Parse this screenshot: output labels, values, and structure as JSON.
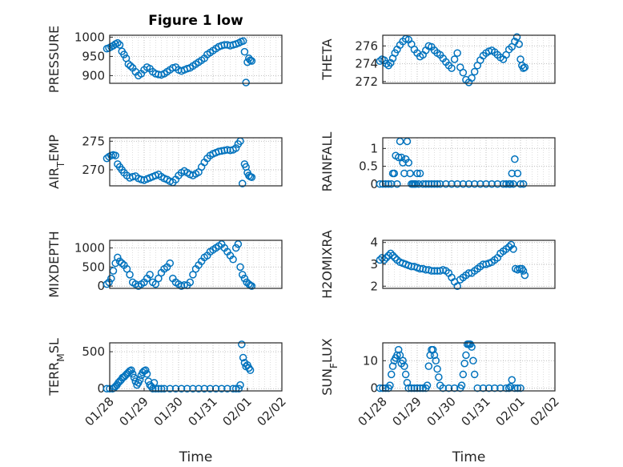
{
  "figure": {
    "title": "Figure 1 low",
    "marker_color": "#0072BD"
  },
  "chart_data": [
    {
      "type": "scatter",
      "marker": "open-circle",
      "grid": true,
      "title": "Figure 1 low",
      "ylabel": "PRESSURE",
      "xlabel": "",
      "xlim": [
        "01/28",
        "02/02"
      ],
      "ylim": [
        880,
        1005
      ],
      "yticks": [
        900,
        950,
        1000
      ],
      "x": [
        "01/27 22:00",
        "01/27 23:30",
        "01/28 01:00",
        "01/28 02:30",
        "01/28 04:00",
        "01/28 05:30",
        "01/28 07:00",
        "01/28 08:30",
        "01/28 10:00",
        "01/28 11:30",
        "01/28 13:00",
        "01/28 14:30",
        "01/28 16:00",
        "01/28 18:00",
        "01/28 20:00",
        "01/28 22:00",
        "01/29 00:00",
        "01/29 02:00",
        "01/29 04:00",
        "01/29 06:00",
        "01/29 08:00",
        "01/29 10:00",
        "01/29 12:00",
        "01/29 14:00",
        "01/29 16:00",
        "01/29 18:00",
        "01/29 20:00",
        "01/29 22:00",
        "01/30 00:00",
        "01/30 02:00",
        "01/30 04:00",
        "01/30 06:00",
        "01/30 08:00",
        "01/30 10:00",
        "01/30 12:00",
        "01/30 14:00",
        "01/30 16:00",
        "01/30 18:00",
        "01/30 20:00",
        "01/30 22:00",
        "01/31 00:00",
        "01/31 02:00",
        "01/31 04:00",
        "01/31 06:00",
        "01/31 08:00",
        "01/31 10:00",
        "01/31 12:00",
        "01/31 14:00",
        "01/31 16:00",
        "01/31 18:00",
        "01/31 19:30",
        "01/31 21:00",
        "01/31 22:00",
        "01/31 23:00",
        "02/01 00:00",
        "02/01 01:00",
        "02/01 02:00",
        "02/01 03:00"
      ],
      "y": [
        970,
        972,
        975,
        978,
        982,
        985,
        980,
        963,
        955,
        945,
        930,
        925,
        920,
        910,
        900,
        905,
        915,
        922,
        918,
        910,
        905,
        903,
        902,
        905,
        910,
        915,
        920,
        922,
        915,
        912,
        915,
        918,
        920,
        925,
        930,
        935,
        940,
        945,
        955,
        960,
        965,
        970,
        975,
        978,
        980,
        980,
        978,
        980,
        982,
        985,
        988,
        990,
        962,
        882,
        935,
        945,
        940,
        938
      ]
    },
    {
      "type": "scatter",
      "marker": "open-circle",
      "grid": true,
      "ylabel": "THETA",
      "xlabel": "",
      "xlim": [
        "01/28",
        "02/02"
      ],
      "ylim": [
        271.8,
        277.2
      ],
      "yticks": [
        272,
        274,
        276
      ],
      "x": [
        "01/27 22:00",
        "01/27 23:30",
        "01/28 01:00",
        "01/28 02:30",
        "01/28 04:00",
        "01/28 05:30",
        "01/28 07:00",
        "01/28 08:30",
        "01/28 10:00",
        "01/28 12:00",
        "01/28 14:00",
        "01/28 16:00",
        "01/28 18:00",
        "01/28 20:00",
        "01/28 22:00",
        "01/29 00:00",
        "01/29 02:00",
        "01/29 04:00",
        "01/29 06:00",
        "01/29 08:00",
        "01/29 10:00",
        "01/29 12:00",
        "01/29 14:00",
        "01/29 16:00",
        "01/29 18:00",
        "01/29 20:00",
        "01/29 22:00",
        "01/30 00:00",
        "01/30 02:00",
        "01/30 04:00",
        "01/30 06:00",
        "01/30 08:00",
        "01/30 10:00",
        "01/30 12:00",
        "01/30 14:00",
        "01/30 16:00",
        "01/30 18:00",
        "01/30 20:00",
        "01/30 22:00",
        "01/31 00:00",
        "01/31 02:00",
        "01/31 04:00",
        "01/31 06:00",
        "01/31 08:00",
        "01/31 10:00",
        "01/31 12:00",
        "01/31 14:00",
        "01/31 16:00",
        "01/31 18:00",
        "01/31 20:00",
        "01/31 21:30",
        "01/31 23:00",
        "02/01 00:00",
        "02/01 01:00",
        "02/01 02:00",
        "02/01 03:00"
      ],
      "y": [
        274.3,
        274.5,
        274.4,
        274.0,
        273.8,
        274.1,
        274.6,
        275.2,
        275.6,
        276.1,
        276.5,
        276.8,
        276.7,
        276.2,
        275.6,
        275.2,
        274.8,
        275.0,
        275.5,
        276.0,
        275.9,
        275.5,
        275.2,
        275.0,
        274.6,
        274.2,
        273.8,
        273.5,
        274.5,
        275.2,
        273.6,
        273.0,
        272.2,
        271.9,
        272.4,
        273.1,
        273.8,
        274.4,
        274.9,
        275.2,
        275.4,
        275.5,
        275.3,
        275.0,
        274.7,
        274.5,
        275.0,
        275.6,
        275.9,
        276.5,
        277.0,
        276.2,
        274.5,
        273.8,
        273.5,
        273.6
      ]
    },
    {
      "type": "scatter",
      "marker": "open-circle",
      "grid": true,
      "ylabel": "AIR_TEMP",
      "xlabel": "",
      "xlim": [
        "01/28",
        "02/02"
      ],
      "ylim": [
        267.2,
        275.6
      ],
      "yticks": [
        270,
        275
      ],
      "x": [
        "01/27 22:00",
        "01/27 23:30",
        "01/28 01:00",
        "01/28 02:30",
        "01/28 04:00",
        "01/28 05:30",
        "01/28 07:00",
        "01/28 08:30",
        "01/28 10:00",
        "01/28 12:00",
        "01/28 14:00",
        "01/28 16:00",
        "01/28 18:00",
        "01/28 20:00",
        "01/28 22:00",
        "01/29 00:00",
        "01/29 02:00",
        "01/29 04:00",
        "01/29 06:00",
        "01/29 08:00",
        "01/29 10:00",
        "01/29 12:00",
        "01/29 14:00",
        "01/29 16:00",
        "01/29 18:00",
        "01/29 20:00",
        "01/29 22:00",
        "01/30 00:00",
        "01/30 02:00",
        "01/30 04:00",
        "01/30 06:00",
        "01/30 08:00",
        "01/30 10:00",
        "01/30 12:00",
        "01/30 14:00",
        "01/30 16:00",
        "01/30 18:00",
        "01/30 20:00",
        "01/30 22:00",
        "01/31 00:00",
        "01/31 02:00",
        "01/31 04:00",
        "01/31 06:00",
        "01/31 08:00",
        "01/31 10:00",
        "01/31 12:00",
        "01/31 14:00",
        "01/31 16:00",
        "01/31 17:30",
        "01/31 19:00",
        "01/31 20:30",
        "01/31 22:00",
        "01/31 23:00",
        "02/01 00:00",
        "02/01 01:00",
        "02/01 02:00",
        "02/01 03:00"
      ],
      "y": [
        272.0,
        272.3,
        272.5,
        272.6,
        272.5,
        271.0,
        270.5,
        270.0,
        269.5,
        269.0,
        268.6,
        268.8,
        268.9,
        268.5,
        268.3,
        268.2,
        268.4,
        268.6,
        268.8,
        269.0,
        269.2,
        268.8,
        268.5,
        268.3,
        268.0,
        267.8,
        268.3,
        269.0,
        269.5,
        269.8,
        269.5,
        269.2,
        269.0,
        269.3,
        269.6,
        270.5,
        271.3,
        272.0,
        272.5,
        272.8,
        273.0,
        273.2,
        273.3,
        273.4,
        273.5,
        273.4,
        273.5,
        273.8,
        274.5,
        275.0,
        267.6,
        271.0,
        270.5,
        269.5,
        269.0,
        268.8,
        268.7
      ]
    },
    {
      "type": "scatter",
      "marker": "open-circle",
      "grid": true,
      "ylabel": "RAINFALL",
      "xlabel": "",
      "xlim": [
        "01/28",
        "02/02"
      ],
      "ylim": [
        -0.05,
        1.3
      ],
      "yticks": [
        0,
        0.5,
        1
      ],
      "x": [
        "01/27 22:00",
        "01/28 00:00",
        "01/28 02:00",
        "01/28 04:00",
        "01/28 06:00",
        "01/28 07:00",
        "01/28 08:00",
        "01/28 09:00",
        "01/28 10:00",
        "01/28 11:00",
        "01/28 12:00",
        "01/28 13:00",
        "01/28 14:00",
        "01/28 15:00",
        "01/28 16:00",
        "01/28 17:00",
        "01/28 18:00",
        "01/28 19:00",
        "01/28 20:00",
        "01/28 21:00",
        "01/28 22:00",
        "01/28 23:00",
        "01/29 00:00",
        "01/29 01:00",
        "01/29 02:00",
        "01/29 04:00",
        "01/29 06:00",
        "01/29 08:00",
        "01/29 10:00",
        "01/29 12:00",
        "01/29 14:00",
        "01/29 16:00",
        "01/29 20:00",
        "01/30 00:00",
        "01/30 04:00",
        "01/30 08:00",
        "01/30 12:00",
        "01/30 16:00",
        "01/30 20:00",
        "01/31 00:00",
        "01/31 04:00",
        "01/31 08:00",
        "01/31 12:00",
        "01/31 14:00",
        "01/31 16:00",
        "01/31 17:00",
        "01/31 18:00",
        "01/31 19:00",
        "01/31 20:00",
        "01/31 22:00",
        "02/01 00:00",
        "02/01 02:00"
      ],
      "y": [
        0,
        0,
        0,
        0,
        0,
        0.3,
        0.3,
        0.8,
        0,
        0.75,
        1.2,
        0.75,
        0.6,
        0.3,
        0.7,
        1.2,
        0.6,
        0.3,
        0,
        0,
        0,
        0,
        0.3,
        0,
        0.3,
        0,
        0,
        0,
        0,
        0,
        0,
        0,
        0,
        0,
        0,
        0,
        0,
        0,
        0,
        0,
        0,
        0,
        0,
        0,
        0,
        0,
        0.3,
        0,
        0.7,
        0.3,
        0,
        0
      ]
    },
    {
      "type": "scatter",
      "marker": "open-circle",
      "grid": true,
      "ylabel": "MIXDEPTH",
      "xlabel": "",
      "xlim": [
        "01/28",
        "02/02"
      ],
      "ylim": [
        -60,
        1200
      ],
      "yticks": [
        0,
        500,
        1000
      ],
      "x": [
        "01/27 22:00",
        "01/27 23:30",
        "01/28 01:00",
        "01/28 02:30",
        "01/28 04:00",
        "01/28 05:30",
        "01/28 07:00",
        "01/28 08:30",
        "01/28 10:00",
        "01/28 12:00",
        "01/28 14:00",
        "01/28 16:00",
        "01/28 18:00",
        "01/28 20:00",
        "01/28 22:00",
        "01/29 00:00",
        "01/29 02:00",
        "01/29 04:00",
        "01/29 06:00",
        "01/29 08:00",
        "01/29 10:00",
        "01/29 12:00",
        "01/29 14:00",
        "01/29 16:00",
        "01/29 18:00",
        "01/29 20:00",
        "01/29 22:00",
        "01/30 00:00",
        "01/30 02:00",
        "01/30 04:00",
        "01/30 06:00",
        "01/30 08:00",
        "01/30 10:00",
        "01/30 12:00",
        "01/30 14:00",
        "01/30 16:00",
        "01/30 18:00",
        "01/30 20:00",
        "01/30 22:00",
        "01/31 00:00",
        "01/31 02:00",
        "01/31 04:00",
        "01/31 06:00",
        "01/31 08:00",
        "01/31 10:00",
        "01/31 12:00",
        "01/31 14:00",
        "01/31 16:00",
        "01/31 17:30",
        "01/31 19:00",
        "01/31 20:30",
        "01/31 22:00",
        "01/31 23:30",
        "02/01 01:00",
        "02/01 02:00",
        "02/01 03:00"
      ],
      "y": [
        50,
        100,
        200,
        400,
        600,
        750,
        650,
        600,
        550,
        450,
        300,
        100,
        50,
        0,
        50,
        100,
        200,
        300,
        100,
        50,
        200,
        350,
        450,
        500,
        600,
        200,
        100,
        50,
        0,
        30,
        20,
        100,
        300,
        450,
        550,
        650,
        750,
        800,
        900,
        950,
        1000,
        1050,
        1100,
        1000,
        900,
        800,
        700,
        1000,
        1100,
        500,
        300,
        200,
        100,
        50,
        20,
        0
      ]
    },
    {
      "type": "scatter",
      "marker": "open-circle",
      "grid": true,
      "ylabel": "H2OMIXRA",
      "xlabel": "",
      "xlim": [
        "01/28",
        "02/02"
      ],
      "ylim": [
        1.9,
        4.1
      ],
      "yticks": [
        2,
        3,
        4
      ],
      "x": [
        "01/27 22:00",
        "01/27 23:30",
        "01/28 01:00",
        "01/28 02:30",
        "01/28 04:00",
        "01/28 05:30",
        "01/28 07:00",
        "01/28 08:30",
        "01/28 10:00",
        "01/28 12:00",
        "01/28 14:00",
        "01/28 16:00",
        "01/28 18:00",
        "01/28 20:00",
        "01/28 22:00",
        "01/29 00:00",
        "01/29 02:00",
        "01/29 04:00",
        "01/29 06:00",
        "01/29 08:00",
        "01/29 10:00",
        "01/29 12:00",
        "01/29 14:00",
        "01/29 16:00",
        "01/29 18:00",
        "01/29 20:00",
        "01/29 22:00",
        "01/30 00:00",
        "01/30 02:00",
        "01/30 04:00",
        "01/30 06:00",
        "01/30 08:00",
        "01/30 10:00",
        "01/30 12:00",
        "01/30 14:00",
        "01/30 16:00",
        "01/30 18:00",
        "01/30 20:00",
        "01/30 22:00",
        "01/31 00:00",
        "01/31 02:00",
        "01/31 04:00",
        "01/31 06:00",
        "01/31 08:00",
        "01/31 10:00",
        "01/31 12:00",
        "01/31 14:00",
        "01/31 16:00",
        "01/31 17:30",
        "01/31 19:00",
        "01/31 20:30",
        "01/31 22:00",
        "01/31 23:30",
        "02/01 01:00",
        "02/01 02:00",
        "02/01 03:00"
      ],
      "y": [
        3.2,
        3.3,
        3.2,
        3.3,
        3.4,
        3.5,
        3.4,
        3.3,
        3.2,
        3.1,
        3.05,
        3.0,
        2.95,
        2.9,
        2.9,
        2.85,
        2.8,
        2.8,
        2.75,
        2.75,
        2.7,
        2.7,
        2.7,
        2.7,
        2.75,
        2.7,
        2.6,
        2.4,
        2.2,
        2.0,
        2.3,
        2.4,
        2.5,
        2.6,
        2.6,
        2.7,
        2.8,
        2.9,
        3.0,
        3.0,
        3.05,
        3.1,
        3.2,
        3.3,
        3.5,
        3.6,
        3.7,
        3.8,
        3.9,
        3.7,
        2.8,
        2.75,
        2.8,
        2.8,
        2.7,
        2.5
      ]
    },
    {
      "type": "scatter",
      "marker": "open-circle",
      "grid": true,
      "ylabel": "TERR_MSL",
      "xlabel": "Time",
      "xlim": [
        "01/28",
        "02/02"
      ],
      "ylim": [
        -30,
        620
      ],
      "yticks": [
        0,
        500
      ],
      "xticks": [
        "01/28",
        "01/29",
        "01/30",
        "01/31",
        "02/01",
        "02/02"
      ],
      "x": [
        "01/27 22:00",
        "01/28 00:00",
        "01/28 02:00",
        "01/28 03:00",
        "01/28 04:00",
        "01/28 05:00",
        "01/28 06:00",
        "01/28 07:00",
        "01/28 08:00",
        "01/28 09:00",
        "01/28 10:00",
        "01/28 11:00",
        "01/28 12:00",
        "01/28 13:00",
        "01/28 14:00",
        "01/28 15:00",
        "01/28 16:00",
        "01/28 17:00",
        "01/28 18:00",
        "01/28 19:00",
        "01/28 20:00",
        "01/28 21:00",
        "01/28 22:00",
        "01/28 23:00",
        "01/29 00:00",
        "01/29 01:00",
        "01/29 02:00",
        "01/29 03:00",
        "01/29 04:00",
        "01/29 05:00",
        "01/29 06:00",
        "01/29 07:00",
        "01/29 08:00",
        "01/29 10:00",
        "01/29 12:00",
        "01/29 14:00",
        "01/29 18:00",
        "01/29 22:00",
        "01/30 02:00",
        "01/30 06:00",
        "01/30 10:00",
        "01/30 14:00",
        "01/30 18:00",
        "01/30 22:00",
        "01/31 02:00",
        "01/31 06:00",
        "01/31 10:00",
        "01/31 14:00",
        "01/31 16:00",
        "01/31 18:00",
        "01/31 19:00",
        "01/31 20:00",
        "01/31 21:00",
        "01/31 22:00",
        "01/31 23:00",
        "02/01 00:00",
        "02/01 01:00",
        "02/01 02:00"
      ],
      "y": [
        0,
        0,
        0,
        10,
        30,
        50,
        80,
        100,
        120,
        150,
        160,
        180,
        200,
        220,
        240,
        250,
        200,
        150,
        100,
        50,
        80,
        120,
        180,
        220,
        240,
        250,
        200,
        100,
        50,
        30,
        0,
        80,
        0,
        0,
        0,
        0,
        0,
        0,
        0,
        0,
        0,
        0,
        0,
        0,
        0,
        0,
        0,
        0,
        0,
        0,
        50,
        600,
        420,
        350,
        300,
        320,
        280,
        250
      ]
    },
    {
      "type": "scatter",
      "marker": "open-circle",
      "grid": true,
      "ylabel": "SUN_FLUX",
      "xlabel": "Time",
      "xlim": [
        "01/28",
        "02/02"
      ],
      "ylim": [
        -1,
        16.5
      ],
      "yticks": [
        0,
        10
      ],
      "xticks": [
        "01/28",
        "01/29",
        "01/30",
        "01/31",
        "02/01",
        "02/02"
      ],
      "x": [
        "01/27 22:00",
        "01/28 00:00",
        "01/28 02:00",
        "01/28 04:00",
        "01/28 05:00",
        "01/28 06:00",
        "01/28 07:00",
        "01/28 08:00",
        "01/28 09:00",
        "01/28 10:00",
        "01/28 11:00",
        "01/28 12:00",
        "01/28 13:00",
        "01/28 14:00",
        "01/28 15:00",
        "01/28 16:00",
        "01/28 17:00",
        "01/28 18:00",
        "01/28 20:00",
        "01/28 22:00",
        "01/29 00:00",
        "01/29 02:00",
        "01/29 04:00",
        "01/29 06:00",
        "01/29 07:00",
        "01/29 08:00",
        "01/29 09:00",
        "01/29 10:00",
        "01/29 11:00",
        "01/29 12:00",
        "01/29 13:00",
        "01/29 14:00",
        "01/29 15:00",
        "01/29 16:00",
        "01/29 18:00",
        "01/29 22:00",
        "01/30 02:00",
        "01/30 06:00",
        "01/30 07:00",
        "01/30 08:00",
        "01/30 09:00",
        "01/30 10:00",
        "01/30 11:00",
        "01/30 12:00",
        "01/30 13:00",
        "01/30 14:00",
        "01/30 15:00",
        "01/30 16:00",
        "01/30 18:00",
        "01/30 22:00",
        "01/31 02:00",
        "01/31 06:00",
        "01/31 10:00",
        "01/31 14:00",
        "01/31 16:00",
        "01/31 17:00",
        "01/31 18:00",
        "01/31 20:00",
        "01/31 22:00",
        "02/01 00:00"
      ],
      "y": [
        0,
        0,
        0,
        0,
        1,
        5,
        8,
        10,
        11,
        12,
        14,
        12,
        9,
        10,
        8,
        5,
        2,
        0,
        0,
        0,
        0,
        0,
        0,
        0,
        1,
        8,
        12,
        14,
        14,
        12,
        10,
        7,
        4,
        1,
        0,
        0,
        0,
        0,
        1,
        5,
        9,
        12,
        16,
        16,
        16,
        15,
        10,
        5,
        0,
        0,
        0,
        0,
        0,
        0,
        0,
        0.5,
        3,
        0,
        0,
        0
      ]
    }
  ]
}
